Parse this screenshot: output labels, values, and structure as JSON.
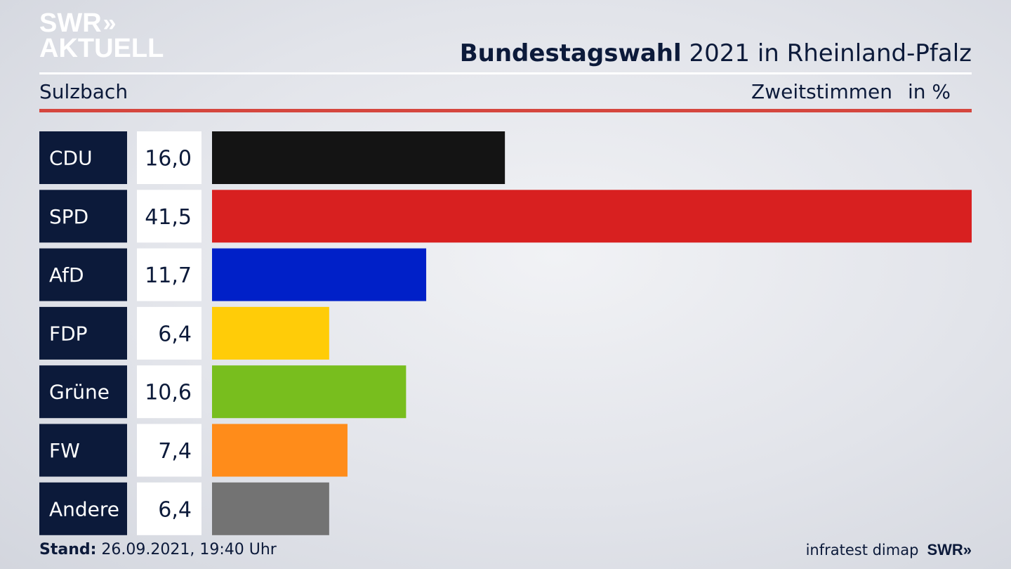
{
  "logo": {
    "line1": "SWR",
    "chevrons": "»",
    "line2": "AKTUELL"
  },
  "header": {
    "title_bold": "Bundestagswahl",
    "title_rest": "2021 in Rheinland-Pfalz",
    "place": "Sulzbach",
    "measure": "Zweitstimmen",
    "unit": "in %"
  },
  "footer": {
    "stand_label": "Stand:",
    "stand_value": "26.09.2021, 19:40 Uhr",
    "source": "infratest dimap",
    "brand": "SWR»"
  },
  "chart_data": {
    "type": "bar",
    "orientation": "horizontal",
    "categories": [
      "CDU",
      "SPD",
      "AfD",
      "FDP",
      "Grüne",
      "FW",
      "Andere"
    ],
    "values": [
      16.0,
      41.5,
      11.7,
      6.4,
      10.6,
      7.4,
      6.4
    ],
    "value_labels": [
      "16,0",
      "41,5",
      "11,7",
      "6,4",
      "10,6",
      "7,4",
      "6,4"
    ],
    "colors": [
      "#141414",
      "#d82020",
      "#0020c8",
      "#ffcc08",
      "#78be1e",
      "#ff8c1a",
      "#737373"
    ],
    "xlim": [
      0,
      41.5
    ],
    "grid": false,
    "label_bg": "#0c1a3a",
    "value_bg": "#ffffff"
  }
}
